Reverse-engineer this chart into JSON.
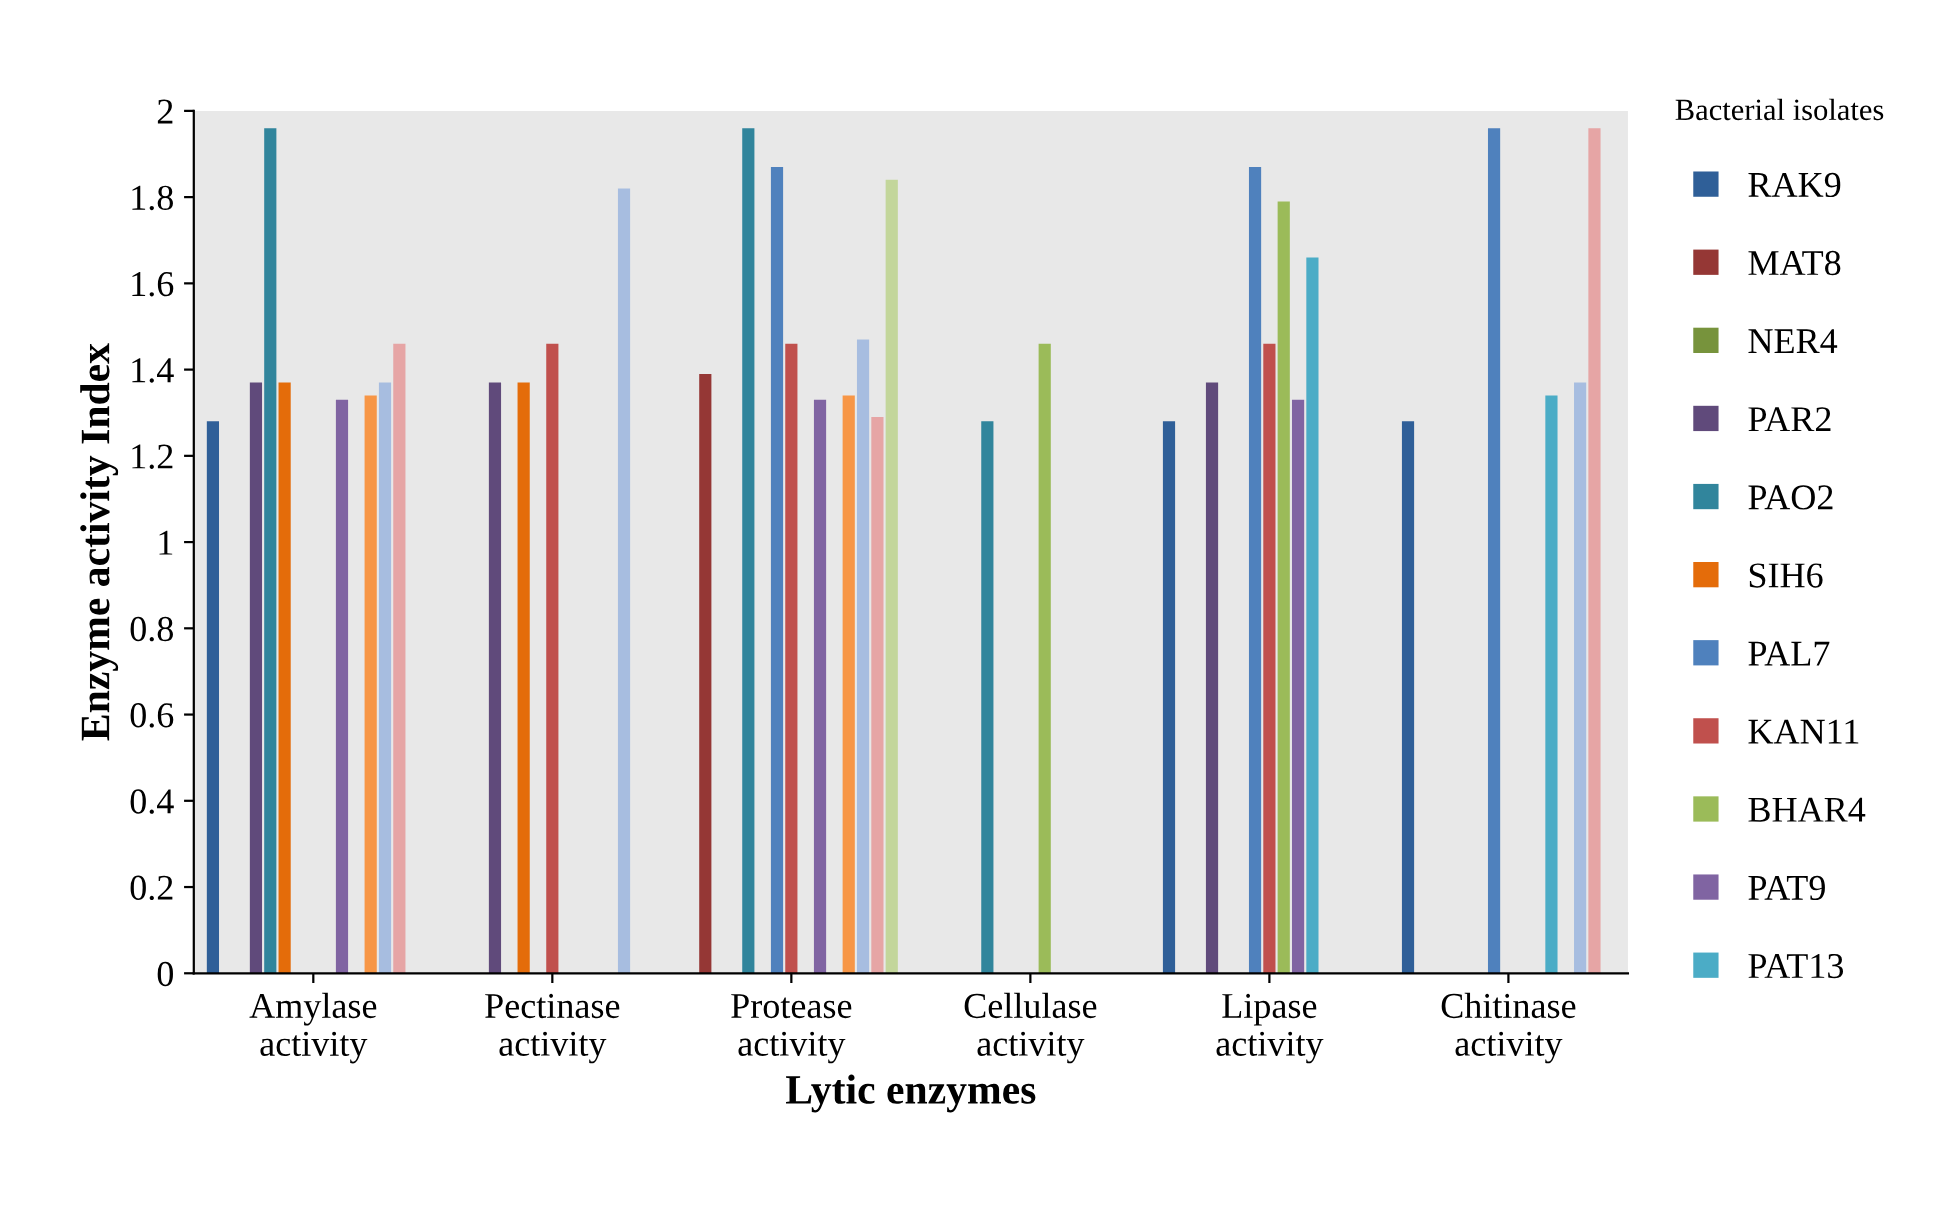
{
  "chart_data": {
    "type": "bar",
    "xlabel": "Lytic enzymes",
    "ylabel": "Enzyme activity Index",
    "legend_title": "Bacterial isolates",
    "categories": [
      "Amylase\nactivity",
      "Pectinase\nactivity",
      "Protease\nactivity",
      "Cellulase\nactivity",
      "Lipase\nactivity",
      "Chitinase\nactivity"
    ],
    "ylim": [
      0,
      2
    ],
    "yticks": [
      0,
      0.2,
      0.4,
      0.6,
      0.8,
      1,
      1.2,
      1.4,
      1.6,
      1.8,
      2
    ],
    "grid": false,
    "legend": "right",
    "series": [
      {
        "name": "RAK9",
        "color": "#2f5f98",
        "values": [
          1.28,
          0,
          0,
          0,
          1.28,
          1.28
        ]
      },
      {
        "name": "MAT8",
        "color": "#953735",
        "values": [
          0,
          0,
          1.39,
          0,
          0,
          0
        ]
      },
      {
        "name": "NER4",
        "color": "#77933c",
        "values": [
          0,
          0,
          0,
          0,
          0,
          0
        ]
      },
      {
        "name": "PAR2",
        "color": "#604a7b",
        "values": [
          1.37,
          1.37,
          0,
          0,
          1.37,
          0
        ]
      },
      {
        "name": "PAO2",
        "color": "#31859c",
        "values": [
          1.96,
          0,
          1.96,
          1.28,
          0,
          0
        ]
      },
      {
        "name": "SIH6",
        "color": "#e46c0a",
        "values": [
          1.37,
          1.37,
          0,
          0,
          0,
          0
        ]
      },
      {
        "name": "PAL7",
        "color": "#4f81bd",
        "values": [
          0,
          0,
          1.87,
          0,
          1.87,
          1.96
        ]
      },
      {
        "name": "KAN11",
        "color": "#c0504d",
        "values": [
          0,
          1.46,
          1.46,
          0,
          1.46,
          0
        ]
      },
      {
        "name": "BHAR4",
        "color": "#9bbb59",
        "values": [
          0,
          0,
          0,
          1.46,
          1.79,
          0
        ]
      },
      {
        "name": "PAT9",
        "color": "#8064a2",
        "values": [
          1.33,
          0,
          1.33,
          0,
          1.33,
          0
        ]
      },
      {
        "name": "PAT13",
        "color": "#4bacc6",
        "values": [
          0,
          0,
          0,
          0,
          1.66,
          1.34
        ]
      },
      {
        "color": "#f79646",
        "values": [
          1.34,
          0,
          1.34,
          0,
          0,
          0
        ]
      },
      {
        "color": "#a7bde0",
        "values": [
          1.37,
          1.82,
          1.47,
          0,
          0,
          1.37
        ]
      },
      {
        "color": "#e6a5a5",
        "values": [
          1.46,
          0,
          1.29,
          0,
          0,
          1.96
        ]
      },
      {
        "color": "#c3d69b",
        "values": [
          0,
          0,
          1.84,
          0,
          0,
          0
        ]
      }
    ]
  }
}
